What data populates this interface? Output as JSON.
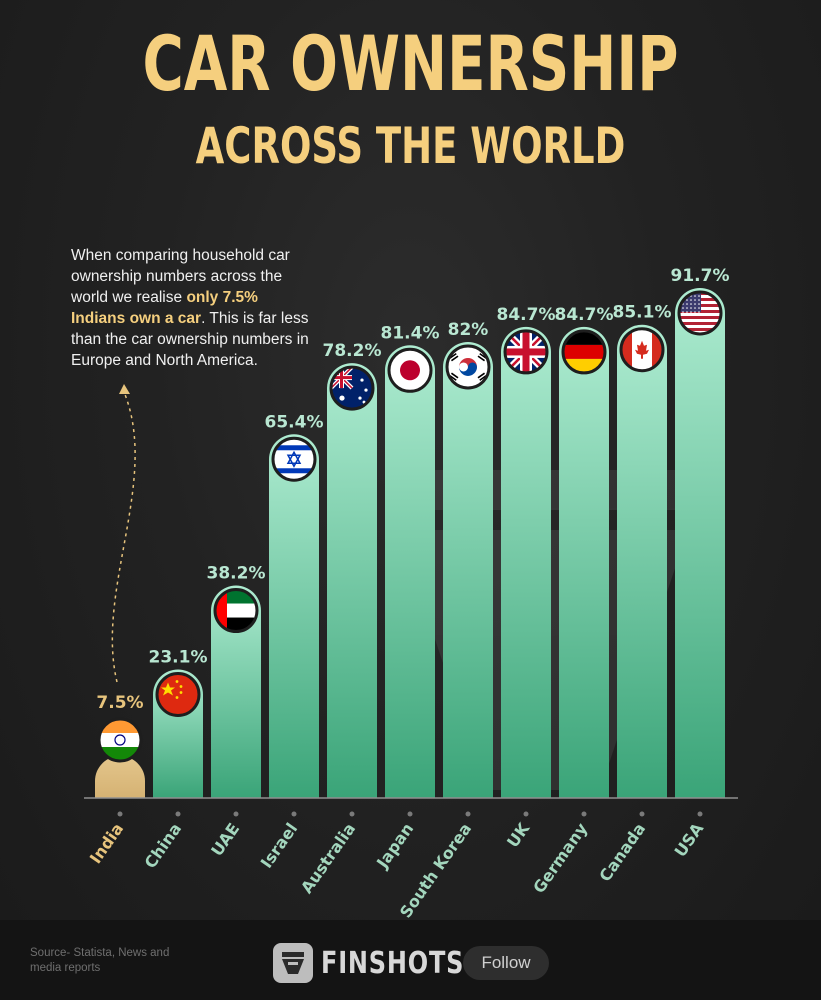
{
  "title": "CAR OWNERSHIP",
  "subtitle": "ACROSS THE WORLD",
  "annotation": {
    "part1": "When comparing household car ownership numbers across the world we realise ",
    "highlight": "only 7.5% Indians own a car",
    "part2": ". This is far less than the car ownership numbers in Europe and North America."
  },
  "chart_data": {
    "type": "bar",
    "categories": [
      "India",
      "China",
      "UAE",
      "Israel",
      "Australia",
      "Japan",
      "South Korea",
      "UK",
      "Germany",
      "Canada",
      "USA"
    ],
    "values": [
      7.5,
      23.1,
      38.2,
      65.4,
      78.2,
      81.4,
      82,
      84.7,
      84.7,
      85.1,
      91.7
    ],
    "value_labels": [
      "7.5%",
      "23.1%",
      "38.2%",
      "65.4%",
      "78.2%",
      "81.4%",
      "82%",
      "84.7%",
      "84.7%",
      "85.1%",
      "91.7%"
    ],
    "flags": [
      "india-flag",
      "china-flag",
      "uae-flag",
      "israel-flag",
      "australia-flag",
      "japan-flag",
      "south-korea-flag",
      "uk-flag",
      "germany-flag",
      "canada-flag",
      "usa-flag"
    ],
    "highlight_category": "India",
    "ylim": [
      0,
      100
    ],
    "grid": false,
    "colors": {
      "bar_top": "#aeecd1",
      "bar_bottom": "#3aa478",
      "highlight_bar": "#dfbf83",
      "highlight_text": "#e7c47d",
      "value_text": "#b9e7d2",
      "category_text": "#a3d6bd",
      "title": "#f5cf7e"
    }
  },
  "footer": {
    "source": "Source- Statista, News and media reports",
    "brand": "FINSHOTS",
    "follow": "Follow"
  }
}
